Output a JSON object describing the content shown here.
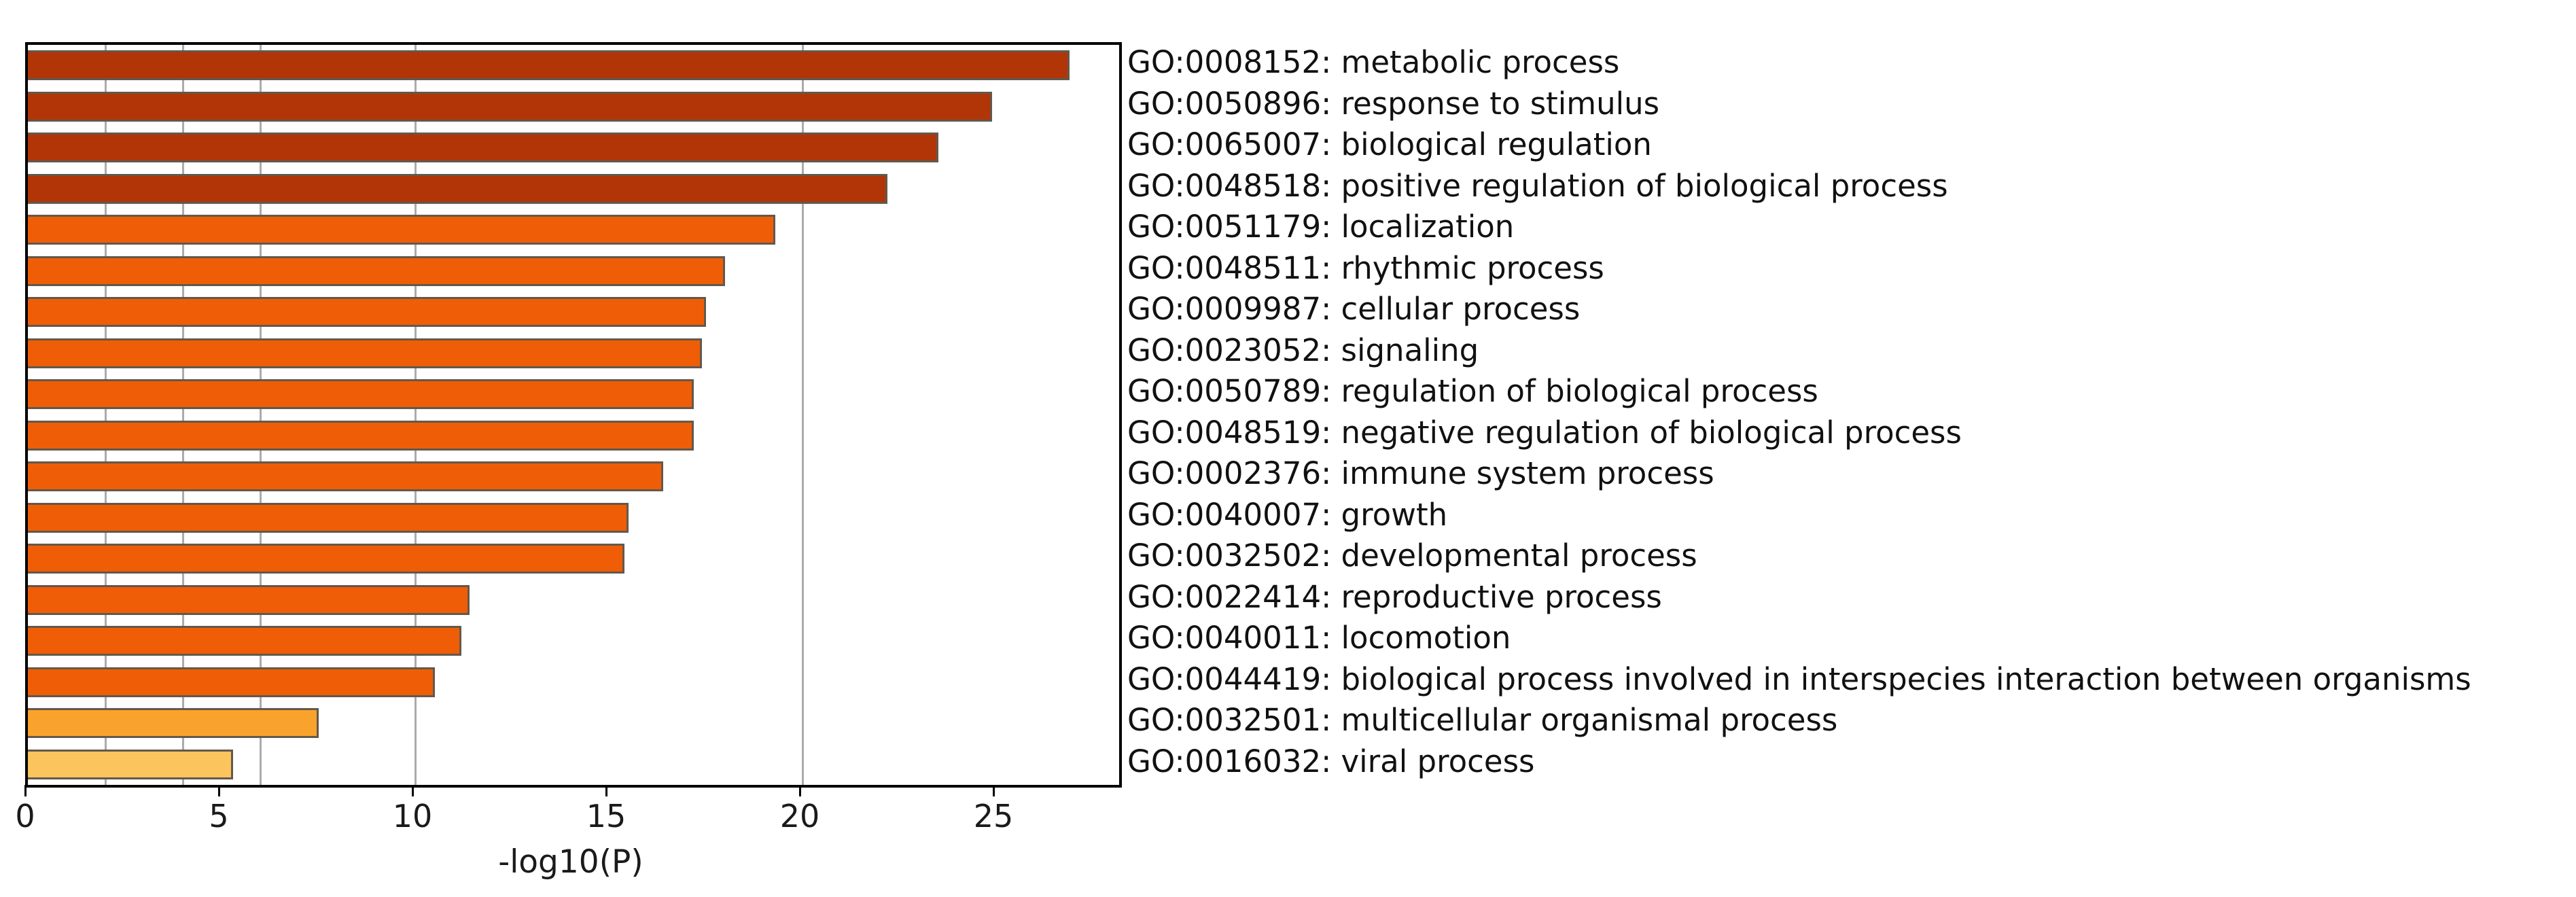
{
  "chart_data": {
    "type": "bar",
    "orientation": "horizontal",
    "title": "",
    "xlabel": "-log10(P)",
    "xlim": [
      0,
      28.2
    ],
    "x_ticks": [
      0,
      5,
      10,
      15,
      20,
      25
    ],
    "gridlines_at": [
      2,
      4,
      6,
      10,
      20
    ],
    "grid": true,
    "legend_position": "none",
    "categories": [
      "GO:0008152: metabolic process",
      "GO:0050896: response to stimulus",
      "GO:0065007: biological regulation",
      "GO:0048518: positive regulation of biological process",
      "GO:0051179: localization",
      "GO:0048511: rhythmic process",
      "GO:0009987: cellular process",
      "GO:0023052: signaling",
      "GO:0050789: regulation of biological process",
      "GO:0048519: negative regulation of biological process",
      "GO:0002376: immune system process",
      "GO:0040007: growth",
      "GO:0032502: developmental process",
      "GO:0022414: reproductive process",
      "GO:0040011: locomotion",
      "GO:0044419: biological process involved in interspecies interaction between organisms",
      "GO:0032501: multicellular organismal process",
      "GO:0016032: viral process"
    ],
    "values": [
      26.9,
      24.9,
      23.5,
      22.2,
      19.3,
      18.0,
      17.5,
      17.4,
      17.2,
      17.2,
      16.4,
      15.5,
      15.4,
      11.4,
      11.2,
      10.5,
      7.5,
      5.3
    ],
    "bar_colors": [
      "#B13507",
      "#B13507",
      "#B13507",
      "#B13507",
      "#EF5E06",
      "#EF5E06",
      "#EF5E06",
      "#EF5E06",
      "#EF5E06",
      "#EF5E06",
      "#EF5E06",
      "#EF5E06",
      "#EF5E06",
      "#EF5E06",
      "#EF5E06",
      "#EF5E06",
      "#FAA32C",
      "#FCC45C"
    ]
  },
  "style": {
    "background": "#FFFFFF",
    "axis_color": "#000000",
    "gridline_color": "#ABABAB",
    "bar_edge_color": "#63584C",
    "text_color": "#1A1A1A",
    "color_bin_dark_red": "#B13507",
    "color_bin_orange": "#EF5E06",
    "color_bin_light_orange": "#FAA32C",
    "color_bin_yellow": "#FCC45C"
  }
}
